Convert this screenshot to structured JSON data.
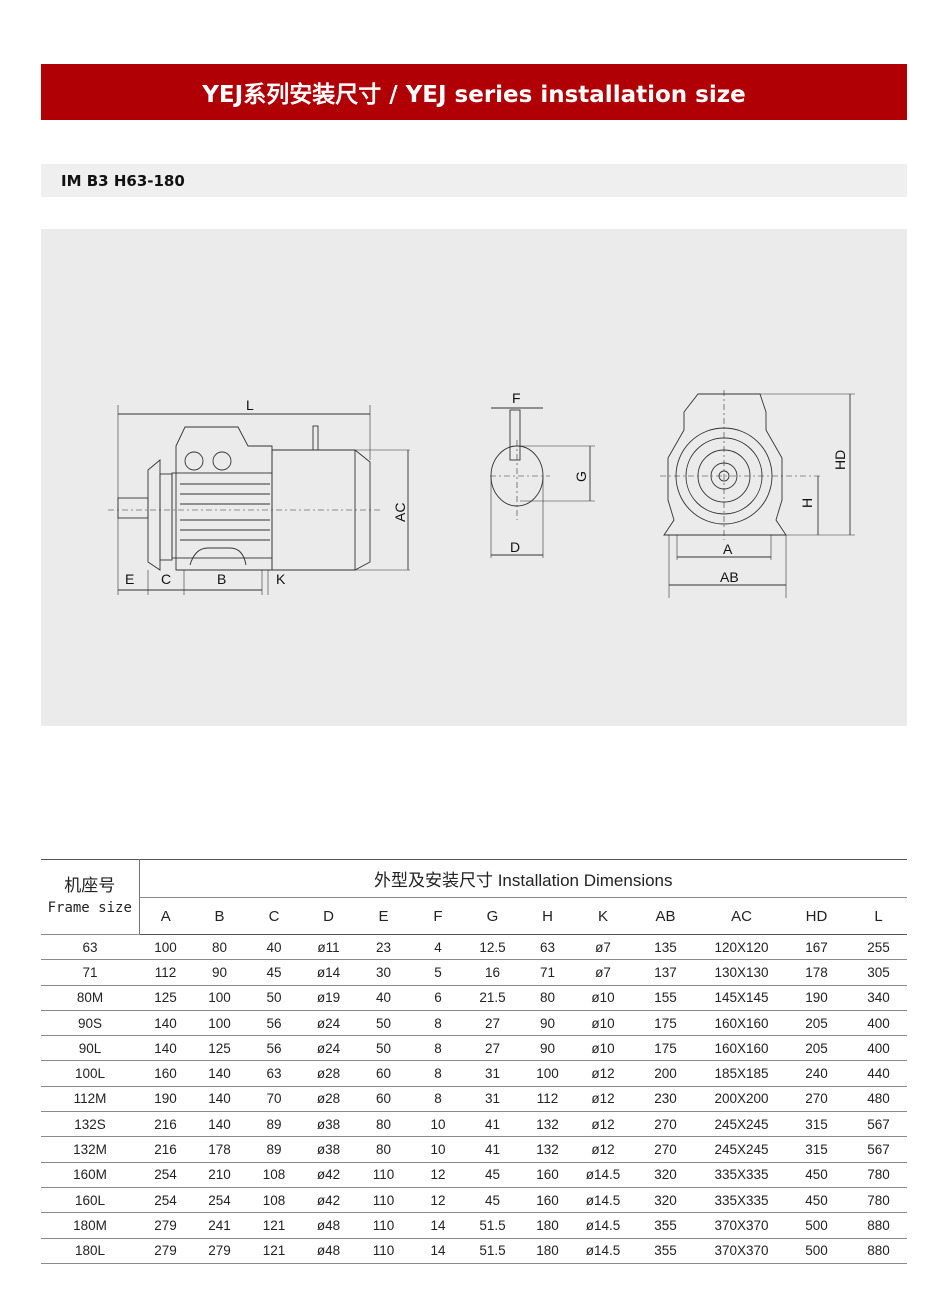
{
  "header": {
    "title": "YEJ系列安装尺寸 / YEJ series installation size"
  },
  "section": {
    "label": "IM B3 H63-180"
  },
  "diagram": {
    "labels": {
      "L": "L",
      "E": "E",
      "C": "C",
      "B": "B",
      "K": "K",
      "AC": "AC",
      "F": "F",
      "G": "G",
      "D": "D",
      "HD": "HD",
      "H": "H",
      "A": "A",
      "AB": "AB"
    }
  },
  "table": {
    "frame_header_cn": "机座号",
    "frame_header_en": "Frame size",
    "group_header": "外型及安装尺寸  Installation Dimensions",
    "columns": [
      "A",
      "B",
      "C",
      "D",
      "E",
      "F",
      "G",
      "H",
      "K",
      "AB",
      "AC",
      "HD",
      "L"
    ],
    "rows": [
      [
        "63",
        "100",
        "80",
        "40",
        "ø11",
        "23",
        "4",
        "12.5",
        "63",
        "ø7",
        "135",
        "120X120",
        "167",
        "255"
      ],
      [
        "71",
        "112",
        "90",
        "45",
        "ø14",
        "30",
        "5",
        "16",
        "71",
        "ø7",
        "137",
        "130X130",
        "178",
        "305"
      ],
      [
        "80M",
        "125",
        "100",
        "50",
        "ø19",
        "40",
        "6",
        "21.5",
        "80",
        "ø10",
        "155",
        "145X145",
        "190",
        "340"
      ],
      [
        "90S",
        "140",
        "100",
        "56",
        "ø24",
        "50",
        "8",
        "27",
        "90",
        "ø10",
        "175",
        "160X160",
        "205",
        "400"
      ],
      [
        "90L",
        "140",
        "125",
        "56",
        "ø24",
        "50",
        "8",
        "27",
        "90",
        "ø10",
        "175",
        "160X160",
        "205",
        "400"
      ],
      [
        "100L",
        "160",
        "140",
        "63",
        "ø28",
        "60",
        "8",
        "31",
        "100",
        "ø12",
        "200",
        "185X185",
        "240",
        "440"
      ],
      [
        "112M",
        "190",
        "140",
        "70",
        "ø28",
        "60",
        "8",
        "31",
        "112",
        "ø12",
        "230",
        "200X200",
        "270",
        "480"
      ],
      [
        "132S",
        "216",
        "140",
        "89",
        "ø38",
        "80",
        "10",
        "41",
        "132",
        "ø12",
        "270",
        "245X245",
        "315",
        "567"
      ],
      [
        "132M",
        "216",
        "178",
        "89",
        "ø38",
        "80",
        "10",
        "41",
        "132",
        "ø12",
        "270",
        "245X245",
        "315",
        "567"
      ],
      [
        "160M",
        "254",
        "210",
        "108",
        "ø42",
        "110",
        "12",
        "45",
        "160",
        "ø14.5",
        "320",
        "335X335",
        "450",
        "780"
      ],
      [
        "160L",
        "254",
        "254",
        "108",
        "ø42",
        "110",
        "12",
        "45",
        "160",
        "ø14.5",
        "320",
        "335X335",
        "450",
        "780"
      ],
      [
        "180M",
        "279",
        "241",
        "121",
        "ø48",
        "110",
        "14",
        "51.5",
        "180",
        "ø14.5",
        "355",
        "370X370",
        "500",
        "880"
      ],
      [
        "180L",
        "279",
        "279",
        "121",
        "ø48",
        "110",
        "14",
        "51.5",
        "180",
        "ø14.5",
        "355",
        "370X370",
        "500",
        "880"
      ]
    ]
  }
}
